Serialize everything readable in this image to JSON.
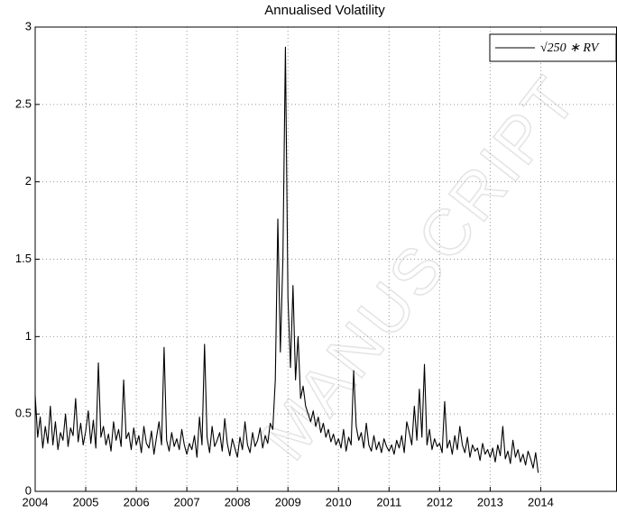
{
  "chart_data": {
    "type": "line",
    "title": "Annualised Volatility",
    "watermark": "MANUSCRIPT",
    "x": [
      2004,
      2004.05,
      2004.1,
      2004.15,
      2004.2,
      2004.25,
      2004.3,
      2004.35,
      2004.4,
      2004.45,
      2004.5,
      2004.55,
      2004.6,
      2004.65,
      2004.7,
      2004.75,
      2004.8,
      2004.85,
      2004.9,
      2004.95,
      2005,
      2005.05,
      2005.1,
      2005.15,
      2005.2,
      2005.25,
      2005.3,
      2005.35,
      2005.4,
      2005.45,
      2005.5,
      2005.55,
      2005.6,
      2005.65,
      2005.7,
      2005.75,
      2005.8,
      2005.85,
      2005.9,
      2005.95,
      2006,
      2006.05,
      2006.1,
      2006.15,
      2006.2,
      2006.25,
      2006.3,
      2006.35,
      2006.4,
      2006.45,
      2006.5,
      2006.55,
      2006.6,
      2006.65,
      2006.7,
      2006.75,
      2006.8,
      2006.85,
      2006.9,
      2006.95,
      2007,
      2007.05,
      2007.1,
      2007.15,
      2007.2,
      2007.25,
      2007.3,
      2007.35,
      2007.4,
      2007.45,
      2007.5,
      2007.55,
      2007.6,
      2007.65,
      2007.7,
      2007.75,
      2007.8,
      2007.85,
      2007.9,
      2007.95,
      2008,
      2008.05,
      2008.1,
      2008.15,
      2008.2,
      2008.25,
      2008.3,
      2008.35,
      2008.4,
      2008.45,
      2008.5,
      2008.55,
      2008.6,
      2008.65,
      2008.7,
      2008.75,
      2008.8,
      2008.85,
      2008.9,
      2008.95,
      2009,
      2009.05,
      2009.1,
      2009.15,
      2009.2,
      2009.25,
      2009.3,
      2009.35,
      2009.4,
      2009.45,
      2009.5,
      2009.55,
      2009.6,
      2009.65,
      2009.7,
      2009.75,
      2009.8,
      2009.85,
      2009.9,
      2009.95,
      2010,
      2010.05,
      2010.1,
      2010.15,
      2010.2,
      2010.25,
      2010.3,
      2010.35,
      2010.4,
      2010.45,
      2010.5,
      2010.55,
      2010.6,
      2010.65,
      2010.7,
      2010.75,
      2010.8,
      2010.85,
      2010.9,
      2010.95,
      2011,
      2011.05,
      2011.1,
      2011.15,
      2011.2,
      2011.25,
      2011.3,
      2011.35,
      2011.4,
      2011.45,
      2011.5,
      2011.55,
      2011.6,
      2011.65,
      2011.7,
      2011.75,
      2011.8,
      2011.85,
      2011.9,
      2011.95,
      2012,
      2012.05,
      2012.1,
      2012.15,
      2012.2,
      2012.25,
      2012.3,
      2012.35,
      2012.4,
      2012.45,
      2012.5,
      2012.55,
      2012.6,
      2012.65,
      2012.7,
      2012.75,
      2012.8,
      2012.85,
      2012.9,
      2012.95,
      2013,
      2013.05,
      2013.1,
      2013.15,
      2013.2,
      2013.25,
      2013.3,
      2013.35,
      2013.4,
      2013.45,
      2013.5,
      2013.55,
      2013.6,
      2013.65,
      2013.7,
      2013.75,
      2013.8,
      2013.85,
      2013.9,
      2013.95
    ],
    "series": [
      {
        "name": "√250 ∗ RV",
        "color": "#000000",
        "values": [
          0.62,
          0.35,
          0.48,
          0.28,
          0.42,
          0.31,
          0.55,
          0.3,
          0.45,
          0.27,
          0.38,
          0.33,
          0.5,
          0.29,
          0.41,
          0.36,
          0.6,
          0.32,
          0.44,
          0.3,
          0.39,
          0.52,
          0.31,
          0.46,
          0.28,
          0.83,
          0.35,
          0.42,
          0.3,
          0.37,
          0.26,
          0.45,
          0.33,
          0.4,
          0.29,
          0.72,
          0.34,
          0.38,
          0.27,
          0.41,
          0.3,
          0.36,
          0.25,
          0.42,
          0.31,
          0.28,
          0.39,
          0.24,
          0.35,
          0.45,
          0.3,
          0.93,
          0.33,
          0.26,
          0.38,
          0.29,
          0.34,
          0.27,
          0.4,
          0.3,
          0.24,
          0.31,
          0.27,
          0.36,
          0.22,
          0.48,
          0.3,
          0.95,
          0.35,
          0.25,
          0.42,
          0.29,
          0.33,
          0.38,
          0.26,
          0.47,
          0.31,
          0.23,
          0.34,
          0.28,
          0.22,
          0.35,
          0.27,
          0.45,
          0.3,
          0.25,
          0.38,
          0.29,
          0.33,
          0.41,
          0.28,
          0.36,
          0.31,
          0.44,
          0.4,
          0.72,
          1.76,
          0.9,
          1.5,
          2.87,
          1.25,
          0.8,
          1.33,
          0.72,
          1.0,
          0.6,
          0.68,
          0.55,
          0.5,
          0.45,
          0.52,
          0.42,
          0.48,
          0.38,
          0.44,
          0.35,
          0.4,
          0.32,
          0.37,
          0.3,
          0.34,
          0.28,
          0.4,
          0.26,
          0.35,
          0.3,
          0.78,
          0.42,
          0.33,
          0.38,
          0.28,
          0.44,
          0.3,
          0.26,
          0.36,
          0.27,
          0.32,
          0.25,
          0.34,
          0.29,
          0.26,
          0.3,
          0.24,
          0.33,
          0.28,
          0.36,
          0.25,
          0.45,
          0.38,
          0.3,
          0.55,
          0.33,
          0.66,
          0.35,
          0.82,
          0.3,
          0.4,
          0.27,
          0.34,
          0.29,
          0.31,
          0.25,
          0.58,
          0.28,
          0.33,
          0.24,
          0.36,
          0.27,
          0.42,
          0.3,
          0.25,
          0.35,
          0.22,
          0.3,
          0.26,
          0.28,
          0.2,
          0.31,
          0.24,
          0.27,
          0.22,
          0.28,
          0.19,
          0.3,
          0.23,
          0.42,
          0.21,
          0.26,
          0.18,
          0.33,
          0.22,
          0.27,
          0.19,
          0.24,
          0.17,
          0.26,
          0.21,
          0.15,
          0.25,
          0.12
        ]
      }
    ],
    "xlim": [
      2004,
      2015.5
    ],
    "xticks": [
      2004,
      2005,
      2006,
      2007,
      2008,
      2009,
      2010,
      2011,
      2012,
      2013,
      2014
    ],
    "ylim": [
      0,
      3
    ],
    "yticks": [
      0,
      0.5,
      1,
      1.5,
      2,
      2.5,
      3
    ],
    "grid": true,
    "legend": "upper right"
  }
}
